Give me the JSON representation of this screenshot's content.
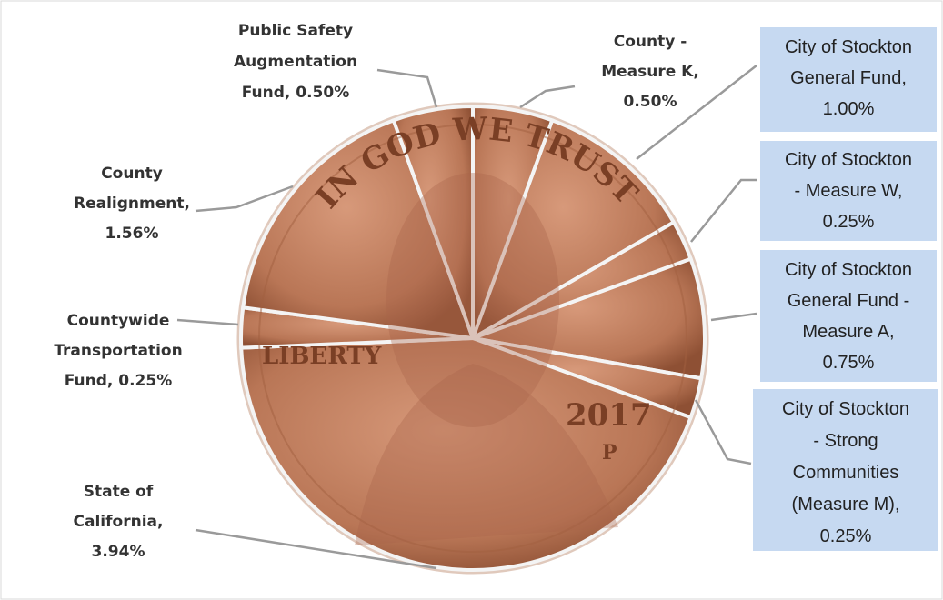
{
  "chart_data": {
    "type": "pie",
    "labels": [
      "County - Measure K, 0.50%",
      "City of Stockton General Fund, 1.00%",
      "City of Stockton - Measure W, 0.25%",
      "City of Stockton General Fund - Measure A, 0.75%",
      "City of Stockton - Strong Communities (Measure M), 0.25%",
      "State of California, 3.94%",
      "Countywide Transportation Fund, 0.25%",
      "County Realignment, 1.56%",
      "Public Safety Augmentation Fund, 0.50%"
    ],
    "values": [
      0.5,
      1.0,
      0.25,
      0.75,
      0.25,
      3.94,
      0.25,
      1.56,
      0.5
    ],
    "color": "#b97656",
    "coin_text": {
      "motto": "IN GOD WE TRUST",
      "legend": "LIBERTY",
      "year": "2017",
      "mint": "P"
    }
  }
}
